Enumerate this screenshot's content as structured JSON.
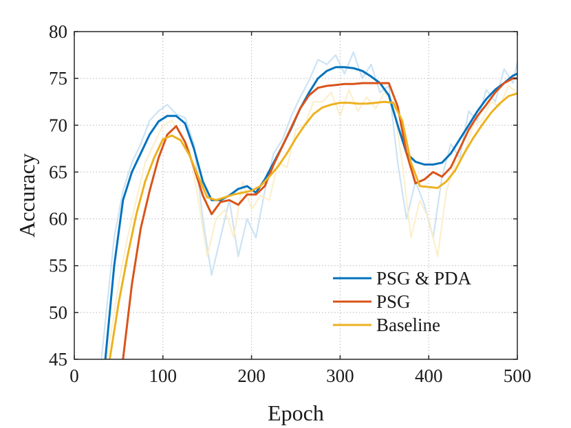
{
  "chart_data": {
    "type": "line",
    "title": "",
    "xlabel": "Epoch",
    "ylabel": "Accuracy",
    "xlim": [
      0,
      500
    ],
    "ylim": [
      45,
      80
    ],
    "xticks": [
      "0",
      "100",
      "200",
      "300",
      "400",
      "500"
    ],
    "yticks": [
      "45",
      "50",
      "55",
      "60",
      "65",
      "70",
      "75",
      "80"
    ],
    "grid": true,
    "legend_position": "bottom-right",
    "series": [
      {
        "name": "PSG & PDA",
        "color": "#0072BD",
        "raw_color": "#c6e0f3",
        "x": [
          25,
          35,
          45,
          55,
          65,
          75,
          85,
          95,
          105,
          115,
          125,
          135,
          145,
          155,
          165,
          175,
          185,
          195,
          205,
          215,
          225,
          235,
          245,
          255,
          265,
          275,
          285,
          295,
          305,
          315,
          325,
          335,
          345,
          355,
          365,
          375,
          385,
          395,
          405,
          415,
          425,
          435,
          445,
          455,
          465,
          475,
          485,
          495,
          500
        ],
        "y": [
          40,
          45,
          55,
          62,
          65,
          67,
          69,
          70.4,
          71,
          71,
          70.2,
          67.5,
          64,
          62,
          62,
          62.5,
          63.2,
          63.5,
          62.8,
          64.2,
          66,
          67.8,
          69.7,
          71.8,
          73.5,
          75,
          75.8,
          76.2,
          76.2,
          76.1,
          75.8,
          75.2,
          74.5,
          73.2,
          70,
          67,
          66.1,
          65.8,
          65.8,
          66,
          67,
          68.5,
          70,
          71.5,
          72.8,
          73.8,
          74.5,
          75.3,
          75.5
        ],
        "raw_y": [
          40,
          49,
          58,
          63,
          66,
          68,
          70.5,
          71.5,
          72.2,
          71.2,
          70.8,
          68,
          60,
          54,
          58,
          62,
          56,
          60,
          58,
          63,
          67,
          68.5,
          71,
          73,
          74.8,
          77,
          76.5,
          77.5,
          75.5,
          77.8,
          75,
          76.5,
          73.5,
          74.2,
          66,
          60,
          64,
          61.5,
          58,
          64.5,
          68,
          66.5,
          71.5,
          70.5,
          73.8,
          72.5,
          76,
          74.5,
          76.8
        ]
      },
      {
        "name": "PSG",
        "color": "#D95319",
        "raw_color": "#f5d5c5",
        "x": [
          45,
          55,
          65,
          75,
          85,
          95,
          105,
          115,
          125,
          135,
          145,
          155,
          165,
          175,
          185,
          195,
          205,
          215,
          225,
          235,
          245,
          255,
          265,
          275,
          285,
          295,
          305,
          315,
          325,
          335,
          345,
          355,
          365,
          375,
          385,
          395,
          405,
          415,
          425,
          435,
          445,
          455,
          465,
          475,
          485,
          495,
          500
        ],
        "y": [
          40,
          45,
          53,
          59,
          63,
          66.5,
          69,
          69.9,
          68.2,
          65.5,
          62.5,
          60.5,
          61.8,
          62,
          61.5,
          62.6,
          62.6,
          63.5,
          65.8,
          67.8,
          69.8,
          71.8,
          73.2,
          74,
          74.2,
          74.3,
          74.4,
          74.4,
          74.5,
          74.5,
          74.5,
          74.5,
          72,
          67,
          63.8,
          64.2,
          65,
          64.5,
          65.5,
          67.5,
          69.5,
          71,
          72.2,
          73.5,
          74.5,
          75,
          75
        ]
      },
      {
        "name": "Baseline",
        "color": "#EDB120",
        "raw_color": "#fbedc8",
        "x": [
          30,
          40,
          50,
          60,
          70,
          80,
          90,
          100,
          110,
          120,
          130,
          140,
          150,
          160,
          170,
          180,
          190,
          200,
          210,
          220,
          230,
          240,
          250,
          260,
          270,
          280,
          290,
          300,
          310,
          320,
          330,
          340,
          350,
          360,
          370,
          380,
          390,
          400,
          410,
          420,
          430,
          440,
          450,
          460,
          470,
          480,
          490,
          500
        ],
        "y": [
          40,
          45,
          51,
          56,
          60.5,
          64,
          66.5,
          68.5,
          68.9,
          68.4,
          66.8,
          64.5,
          62.3,
          62,
          62.3,
          62.6,
          62.8,
          63,
          63.5,
          64.5,
          65.6,
          67,
          68.6,
          70,
          71.2,
          71.9,
          72.2,
          72.4,
          72.4,
          72.3,
          72.3,
          72.4,
          72.5,
          72.4,
          70.5,
          66,
          63.5,
          63.4,
          63.3,
          64,
          65.2,
          67,
          68.6,
          70,
          71.3,
          72.3,
          73.1,
          73.4
        ],
        "raw_y": [
          40,
          47,
          53,
          58,
          62,
          66,
          68,
          70,
          70.5,
          69,
          67.5,
          62,
          56,
          60,
          61,
          58,
          64,
          61,
          62.5,
          62,
          66,
          65.5,
          69.5,
          70,
          72.5,
          72.5,
          73.5,
          71,
          73.8,
          71.5,
          73,
          71.8,
          73.5,
          72.5,
          66,
          58,
          62,
          60,
          56,
          63,
          66,
          67,
          70,
          70.5,
          72.5,
          72,
          74.2,
          73.5
        ]
      }
    ]
  }
}
